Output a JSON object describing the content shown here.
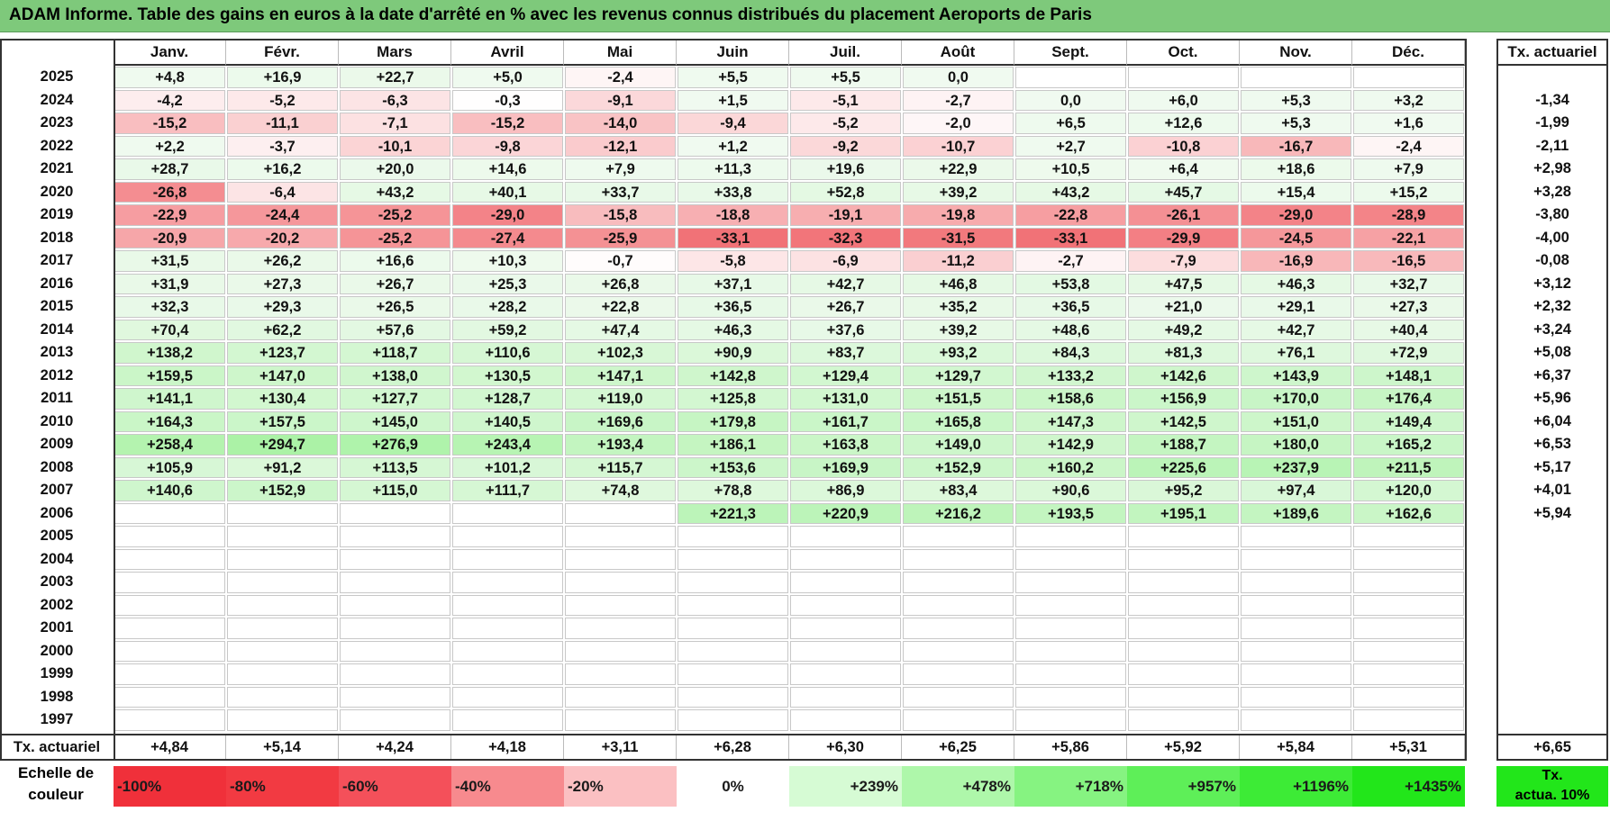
{
  "title": "ADAM Informe. Table des gains en euros à la date d'arrêté en % avec les revenus connus distribués du placement Aeroports de Paris",
  "months": [
    "Janv.",
    "Févr.",
    "Mars",
    "Avril",
    "Mai",
    "Juin",
    "Juil.",
    "Août",
    "Sept.",
    "Oct.",
    "Nov.",
    "Déc."
  ],
  "rate_header": "Tx. actuariel",
  "rows": [
    {
      "year": "2025",
      "values": [
        "+4,8",
        "+16,9",
        "+22,7",
        "+5,0",
        "-2,4",
        "+5,5",
        "+5,5",
        "0,0",
        "",
        "",
        "",
        ""
      ],
      "rate": ""
    },
    {
      "year": "2024",
      "values": [
        "-4,2",
        "-5,2",
        "-6,3",
        "-0,3",
        "-9,1",
        "+1,5",
        "-5,1",
        "-2,7",
        "0,0",
        "+6,0",
        "+5,3",
        "+3,2"
      ],
      "rate": "-1,34"
    },
    {
      "year": "2023",
      "values": [
        "-15,2",
        "-11,1",
        "-7,1",
        "-15,2",
        "-14,0",
        "-9,4",
        "-5,2",
        "-2,0",
        "+6,5",
        "+12,6",
        "+5,3",
        "+1,6"
      ],
      "rate": "-1,99"
    },
    {
      "year": "2022",
      "values": [
        "+2,2",
        "-3,7",
        "-10,1",
        "-9,8",
        "-12,1",
        "+1,2",
        "-9,2",
        "-10,7",
        "+2,7",
        "-10,8",
        "-16,7",
        "-2,4"
      ],
      "rate": "-2,11"
    },
    {
      "year": "2021",
      "values": [
        "+28,7",
        "+16,2",
        "+20,0",
        "+14,6",
        "+7,9",
        "+11,3",
        "+19,6",
        "+22,9",
        "+10,5",
        "+6,4",
        "+18,6",
        "+7,9"
      ],
      "rate": "+2,98"
    },
    {
      "year": "2020",
      "values": [
        "-26,8",
        "-6,4",
        "+43,2",
        "+40,1",
        "+33,7",
        "+33,8",
        "+52,8",
        "+39,2",
        "+43,2",
        "+45,7",
        "+15,4",
        "+15,2"
      ],
      "rate": "+3,28"
    },
    {
      "year": "2019",
      "values": [
        "-22,9",
        "-24,4",
        "-25,2",
        "-29,0",
        "-15,8",
        "-18,8",
        "-19,1",
        "-19,8",
        "-22,8",
        "-26,1",
        "-29,0",
        "-28,9"
      ],
      "rate": "-3,80"
    },
    {
      "year": "2018",
      "values": [
        "-20,9",
        "-20,2",
        "-25,2",
        "-27,4",
        "-25,9",
        "-33,1",
        "-32,3",
        "-31,5",
        "-33,1",
        "-29,9",
        "-24,5",
        "-22,1"
      ],
      "rate": "-4,00"
    },
    {
      "year": "2017",
      "values": [
        "+31,5",
        "+26,2",
        "+16,6",
        "+10,3",
        "-0,7",
        "-5,8",
        "-6,9",
        "-11,2",
        "-2,7",
        "-7,9",
        "-16,9",
        "-16,5"
      ],
      "rate": "-0,08"
    },
    {
      "year": "2016",
      "values": [
        "+31,9",
        "+27,3",
        "+26,7",
        "+25,3",
        "+26,8",
        "+37,1",
        "+42,7",
        "+46,8",
        "+53,8",
        "+47,5",
        "+46,3",
        "+32,7"
      ],
      "rate": "+3,12"
    },
    {
      "year": "2015",
      "values": [
        "+32,3",
        "+29,3",
        "+26,5",
        "+28,2",
        "+22,8",
        "+36,5",
        "+26,7",
        "+35,2",
        "+36,5",
        "+21,0",
        "+29,1",
        "+27,3"
      ],
      "rate": "+2,32"
    },
    {
      "year": "2014",
      "values": [
        "+70,4",
        "+62,2",
        "+57,6",
        "+59,2",
        "+47,4",
        "+46,3",
        "+37,6",
        "+39,2",
        "+48,6",
        "+49,2",
        "+42,7",
        "+40,4"
      ],
      "rate": "+3,24"
    },
    {
      "year": "2013",
      "values": [
        "+138,2",
        "+123,7",
        "+118,7",
        "+110,6",
        "+102,3",
        "+90,9",
        "+83,7",
        "+93,2",
        "+84,3",
        "+81,3",
        "+76,1",
        "+72,9"
      ],
      "rate": "+5,08"
    },
    {
      "year": "2012",
      "values": [
        "+159,5",
        "+147,0",
        "+138,0",
        "+130,5",
        "+147,1",
        "+142,8",
        "+129,4",
        "+129,7",
        "+133,2",
        "+142,6",
        "+143,9",
        "+148,1"
      ],
      "rate": "+6,37"
    },
    {
      "year": "2011",
      "values": [
        "+141,1",
        "+130,4",
        "+127,7",
        "+128,7",
        "+119,0",
        "+125,8",
        "+131,0",
        "+151,5",
        "+158,6",
        "+156,9",
        "+170,0",
        "+176,4"
      ],
      "rate": "+5,96"
    },
    {
      "year": "2010",
      "values": [
        "+164,3",
        "+157,5",
        "+145,0",
        "+140,5",
        "+169,6",
        "+179,8",
        "+161,7",
        "+165,8",
        "+147,3",
        "+142,5",
        "+151,0",
        "+149,4"
      ],
      "rate": "+6,04"
    },
    {
      "year": "2009",
      "values": [
        "+258,4",
        "+294,7",
        "+276,9",
        "+243,4",
        "+193,4",
        "+186,1",
        "+163,8",
        "+149,0",
        "+142,9",
        "+188,7",
        "+180,0",
        "+165,2"
      ],
      "rate": "+6,53"
    },
    {
      "year": "2008",
      "values": [
        "+105,9",
        "+91,2",
        "+113,5",
        "+101,2",
        "+115,7",
        "+153,6",
        "+169,9",
        "+152,9",
        "+160,2",
        "+225,6",
        "+237,9",
        "+211,5"
      ],
      "rate": "+5,17"
    },
    {
      "year": "2007",
      "values": [
        "+140,6",
        "+152,9",
        "+115,0",
        "+111,7",
        "+74,8",
        "+78,8",
        "+86,9",
        "+83,4",
        "+90,6",
        "+95,2",
        "+97,4",
        "+120,0"
      ],
      "rate": "+4,01"
    },
    {
      "year": "2006",
      "values": [
        "",
        "",
        "",
        "",
        "",
        "+221,3",
        "+220,9",
        "+216,2",
        "+193,5",
        "+195,1",
        "+189,6",
        "+162,6"
      ],
      "rate": "+5,94"
    },
    {
      "year": "2005",
      "values": [
        "",
        "",
        "",
        "",
        "",
        "",
        "",
        "",
        "",
        "",
        "",
        ""
      ],
      "rate": ""
    },
    {
      "year": "2004",
      "values": [
        "",
        "",
        "",
        "",
        "",
        "",
        "",
        "",
        "",
        "",
        "",
        ""
      ],
      "rate": ""
    },
    {
      "year": "2003",
      "values": [
        "",
        "",
        "",
        "",
        "",
        "",
        "",
        "",
        "",
        "",
        "",
        ""
      ],
      "rate": ""
    },
    {
      "year": "2002",
      "values": [
        "",
        "",
        "",
        "",
        "",
        "",
        "",
        "",
        "",
        "",
        "",
        ""
      ],
      "rate": ""
    },
    {
      "year": "2001",
      "values": [
        "",
        "",
        "",
        "",
        "",
        "",
        "",
        "",
        "",
        "",
        "",
        ""
      ],
      "rate": ""
    },
    {
      "year": "2000",
      "values": [
        "",
        "",
        "",
        "",
        "",
        "",
        "",
        "",
        "",
        "",
        "",
        ""
      ],
      "rate": ""
    },
    {
      "year": "1999",
      "values": [
        "",
        "",
        "",
        "",
        "",
        "",
        "",
        "",
        "",
        "",
        "",
        ""
      ],
      "rate": ""
    },
    {
      "year": "1998",
      "values": [
        "",
        "",
        "",
        "",
        "",
        "",
        "",
        "",
        "",
        "",
        "",
        ""
      ],
      "rate": ""
    },
    {
      "year": "1997",
      "values": [
        "",
        "",
        "",
        "",
        "",
        "",
        "",
        "",
        "",
        "",
        "",
        ""
      ],
      "rate": ""
    }
  ],
  "summary": {
    "label": "Tx. actuariel",
    "values": [
      "+4,84",
      "+5,14",
      "+4,24",
      "+4,18",
      "+3,11",
      "+6,28",
      "+6,30",
      "+6,25",
      "+5,86",
      "+5,92",
      "+5,84",
      "+5,31"
    ],
    "rate": "+6,65"
  },
  "scale": {
    "label_line1": "Echelle de",
    "label_line2": "couleur",
    "items": [
      {
        "text": "-100%",
        "color": "#f0303a"
      },
      {
        "text": "-80%",
        "color": "#f23a42"
      },
      {
        "text": "-60%",
        "color": "#f4505a"
      },
      {
        "text": "-40%",
        "color": "#f78a8e"
      },
      {
        "text": "-20%",
        "color": "#fbc0c2"
      },
      {
        "text": "0%",
        "color": "#ffffff"
      },
      {
        "text": "+239%",
        "color": "#d6fbd4"
      },
      {
        "text": "+478%",
        "color": "#aef7aa"
      },
      {
        "text": "+718%",
        "color": "#86f381"
      },
      {
        "text": "+957%",
        "color": "#5eef58"
      },
      {
        "text": "+1196%",
        "color": "#3deb36"
      },
      {
        "text": "+1435%",
        "color": "#22e61a"
      }
    ],
    "rate_legend_line1": "Tx.",
    "rate_legend_line2": "actua. 10%",
    "rate_legend_color": "#22e61a"
  },
  "colors": {
    "title_bg": "#7ec97b",
    "neg_strong": "#f06b6f",
    "pos_strong": "#a8f0a4"
  }
}
